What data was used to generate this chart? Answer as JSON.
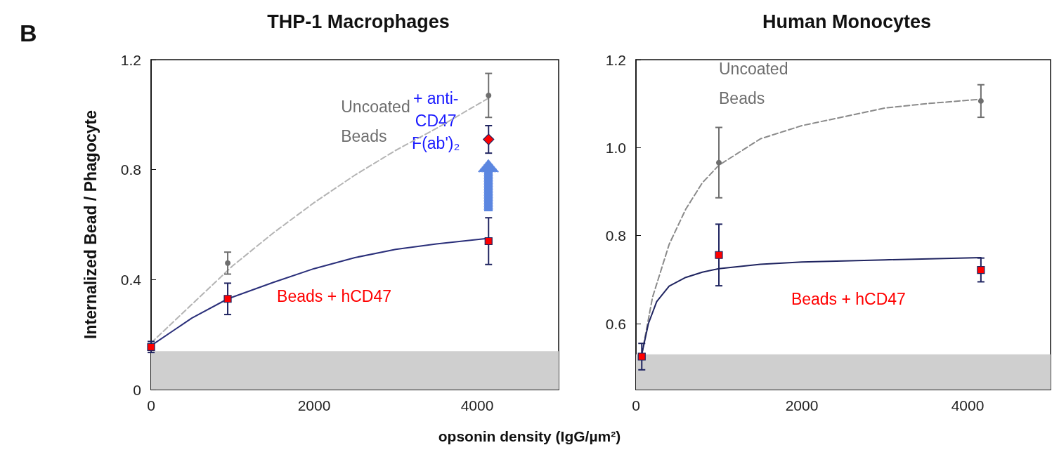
{
  "chart_data": [
    {
      "type": "scatter",
      "title": "THP-1 Macrophages",
      "xlabel": "opsonin density (IgG/µm²)",
      "ylabel": "Internalized Bead / Phagocyte",
      "xlim": [
        0,
        5000
      ],
      "xticks": [
        0,
        2000,
        4000
      ],
      "ylim": [
        0,
        1.2
      ],
      "yticks": [
        0,
        0.4,
        0.8,
        1.2
      ],
      "bands": [
        {
          "axis": "y",
          "from": 0,
          "to": 0.14,
          "color": "#cfcfcf"
        }
      ],
      "annotations": [
        "B",
        "+ anti-CD47 F(ab')₂"
      ],
      "series": [
        {
          "name": "Uncoated Beads",
          "marker": "circle",
          "color": "#6e6e6e",
          "x": [
            940,
            4140
          ],
          "values": [
            0.46,
            1.07
          ],
          "errors": [
            0.04,
            0.08
          ]
        },
        {
          "type": "line",
          "line_style": "dashed",
          "color": "#b4b4b4",
          "x": [
            0,
            500,
            1000,
            1500,
            2000,
            2500,
            3000,
            3500,
            4140
          ],
          "values": [
            0.17,
            0.31,
            0.45,
            0.57,
            0.68,
            0.78,
            0.87,
            0.95,
            1.06
          ]
        },
        {
          "name": "Beads + hCD47",
          "marker": "square",
          "color": "#ff0000",
          "x": [
            0,
            940,
            4140
          ],
          "values": [
            0.155,
            0.33,
            0.54
          ],
          "errors": [
            0.02,
            0.057,
            0.085
          ]
        },
        {
          "type": "line",
          "line_style": "solid",
          "color": "#2a2f7a",
          "x": [
            0,
            500,
            940,
            1500,
            2000,
            2500,
            3000,
            3500,
            4140
          ],
          "values": [
            0.16,
            0.26,
            0.33,
            0.39,
            0.44,
            0.48,
            0.51,
            0.53,
            0.55
          ]
        },
        {
          "marker": "diamond",
          "color": "#ff0000",
          "x": [
            4140
          ],
          "values": [
            0.91
          ],
          "errors": [
            0.05
          ]
        }
      ]
    },
    {
      "type": "scatter",
      "title": "Human Monocytes",
      "xlim": [
        0,
        5000
      ],
      "xticks": [
        0,
        2000,
        4000
      ],
      "ylim": [
        0.45,
        1.2
      ],
      "yticks": [
        0.6,
        0.8,
        {
          "value": 1.0,
          "label": "1.0"
        },
        1.2
      ],
      "bands": [
        {
          "axis": "y",
          "from": 0.45,
          "to": 0.53,
          "color": "#cfcfcf"
        }
      ],
      "series": [
        {
          "name": "Uncoated Beads",
          "marker": "circle",
          "color": "#6e6e6e",
          "x": [
            1000,
            4160
          ],
          "values": [
            0.966,
            1.106
          ],
          "errors": [
            0.08,
            0.037
          ]
        },
        {
          "type": "line",
          "line_style": "dashed",
          "color": "#8a8a8a",
          "x": [
            70,
            200,
            400,
            600,
            800,
            1000,
            1500,
            2000,
            2500,
            3000,
            3500,
            4160
          ],
          "values": [
            0.53,
            0.66,
            0.78,
            0.86,
            0.92,
            0.96,
            1.02,
            1.05,
            1.07,
            1.09,
            1.1,
            1.11
          ]
        },
        {
          "name": "Beads + hCD47",
          "marker": "square",
          "color": "#ff0000",
          "x": [
            70,
            1000,
            4160
          ],
          "values": [
            0.525,
            0.756,
            0.722
          ],
          "errors": [
            0.03,
            0.07,
            0.027
          ]
        },
        {
          "type": "line",
          "line_style": "solid",
          "color": "#1f2460",
          "x": [
            70,
            150,
            250,
            400,
            600,
            800,
            1000,
            1500,
            2000,
            3000,
            4160
          ],
          "values": [
            0.53,
            0.6,
            0.65,
            0.685,
            0.705,
            0.717,
            0.725,
            0.735,
            0.74,
            0.745,
            0.75
          ]
        }
      ]
    }
  ]
}
